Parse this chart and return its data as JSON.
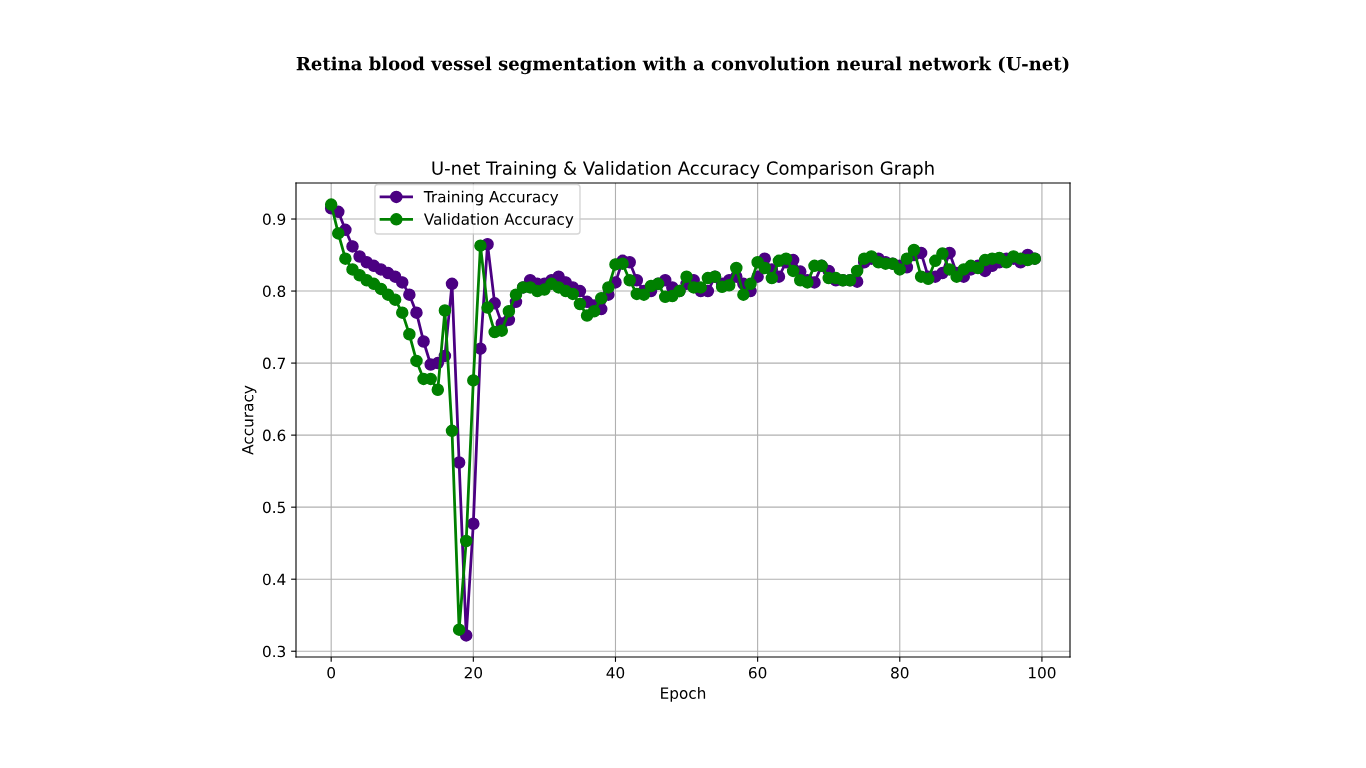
{
  "chart_data": {
    "type": "line",
    "title": "U-net Training & Validation Accuracy Comparison Graph",
    "xlabel": "Epoch",
    "ylabel": "Accuracy",
    "annotations": [
      "Retina blood vessel segmentation with a convolution neural network (U-net)"
    ],
    "x": [
      0,
      1,
      2,
      3,
      4,
      5,
      6,
      7,
      8,
      9,
      10,
      11,
      12,
      13,
      14,
      15,
      16,
      17,
      18,
      19,
      20,
      21,
      22,
      23,
      24,
      25,
      26,
      27,
      28,
      29,
      30,
      31,
      32,
      33,
      34,
      35,
      36,
      37,
      38,
      39,
      40,
      41,
      42,
      43,
      44,
      45,
      46,
      47,
      48,
      49,
      50,
      51,
      52,
      53,
      54,
      55,
      56,
      57,
      58,
      59,
      60,
      61,
      62,
      63,
      64,
      65,
      66,
      67,
      68,
      69,
      70,
      71,
      72,
      73,
      74,
      75,
      76,
      77,
      78,
      79,
      80,
      81,
      82,
      83,
      84,
      85,
      86,
      87,
      88,
      89,
      90,
      91,
      92,
      93,
      94,
      95,
      96,
      97,
      98,
      99
    ],
    "series": [
      {
        "name": "Training Accuracy",
        "color": "#4b0082",
        "values": [
          0.915,
          0.91,
          0.885,
          0.862,
          0.848,
          0.84,
          0.835,
          0.83,
          0.825,
          0.82,
          0.812,
          0.795,
          0.77,
          0.73,
          0.698,
          0.7,
          0.71,
          0.81,
          0.562,
          0.322,
          0.477,
          0.72,
          0.865,
          0.783,
          0.755,
          0.76,
          0.785,
          0.805,
          0.815,
          0.81,
          0.81,
          0.815,
          0.82,
          0.812,
          0.805,
          0.8,
          0.785,
          0.78,
          0.775,
          0.795,
          0.812,
          0.842,
          0.84,
          0.815,
          0.8,
          0.8,
          0.81,
          0.815,
          0.805,
          0.8,
          0.81,
          0.815,
          0.8,
          0.8,
          0.82,
          0.81,
          0.815,
          0.82,
          0.81,
          0.8,
          0.82,
          0.845,
          0.83,
          0.82,
          0.84,
          0.843,
          0.827,
          0.815,
          0.812,
          0.835,
          0.828,
          0.815,
          0.815,
          0.815,
          0.813,
          0.84,
          0.845,
          0.845,
          0.84,
          0.838,
          0.835,
          0.833,
          0.85,
          0.853,
          0.82,
          0.82,
          0.825,
          0.853,
          0.825,
          0.82,
          0.83,
          0.835,
          0.828,
          0.835,
          0.84,
          0.845,
          0.845,
          0.84,
          0.85,
          0.845
        ]
      },
      {
        "name": "Validation Accuracy",
        "color": "#008000",
        "values": [
          0.92,
          0.88,
          0.845,
          0.83,
          0.822,
          0.815,
          0.81,
          0.803,
          0.795,
          0.788,
          0.77,
          0.74,
          0.703,
          0.678,
          0.678,
          0.663,
          0.773,
          0.606,
          0.33,
          0.453,
          0.676,
          0.863,
          0.777,
          0.743,
          0.745,
          0.772,
          0.795,
          0.805,
          0.805,
          0.8,
          0.802,
          0.81,
          0.805,
          0.8,
          0.796,
          0.782,
          0.766,
          0.772,
          0.79,
          0.805,
          0.837,
          0.838,
          0.815,
          0.796,
          0.795,
          0.807,
          0.81,
          0.792,
          0.793,
          0.8,
          0.82,
          0.805,
          0.805,
          0.818,
          0.82,
          0.806,
          0.808,
          0.832,
          0.795,
          0.81,
          0.84,
          0.832,
          0.818,
          0.842,
          0.845,
          0.828,
          0.815,
          0.812,
          0.835,
          0.835,
          0.818,
          0.818,
          0.815,
          0.815,
          0.828,
          0.845,
          0.848,
          0.84,
          0.838,
          0.838,
          0.83,
          0.845,
          0.857,
          0.82,
          0.817,
          0.842,
          0.852,
          0.83,
          0.82,
          0.83,
          0.835,
          0.832,
          0.843,
          0.845,
          0.846,
          0.84,
          0.848,
          0.845,
          0.843,
          0.845
        ]
      }
    ],
    "xlim": [
      -4.95,
      103.95
    ],
    "xticks": [
      0,
      20,
      40,
      60,
      80,
      100
    ],
    "ylim": [
      0.292,
      0.95
    ],
    "yticks": [
      0.3,
      0.4,
      0.5,
      0.6,
      0.7,
      0.8,
      0.9
    ],
    "grid": true,
    "legend": "top left",
    "marker": "circle",
    "line_style": "solid"
  }
}
